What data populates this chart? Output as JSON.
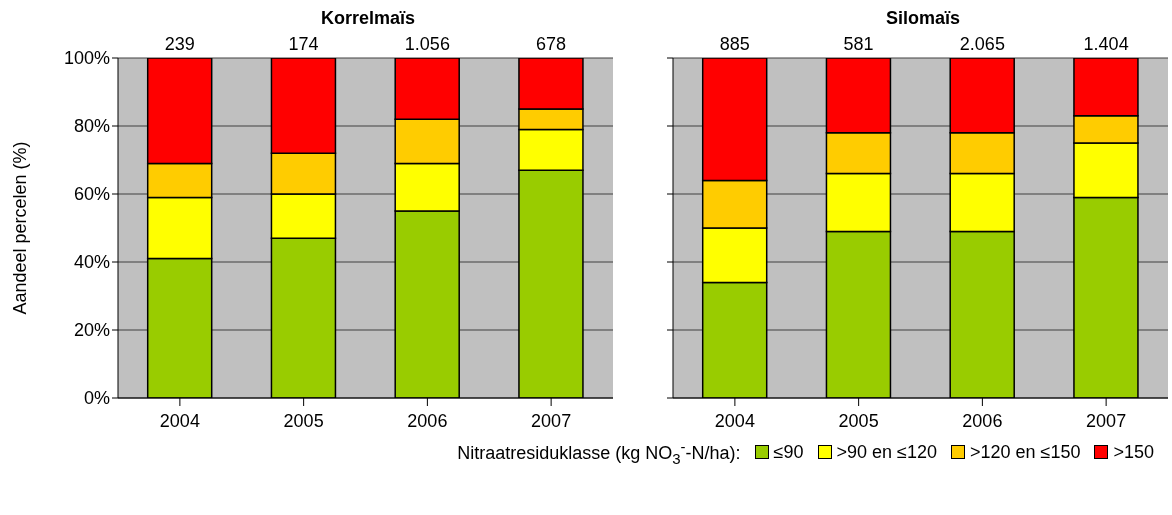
{
  "chart_data": [
    {
      "type": "bar",
      "stacked": true,
      "title": "Korrelmaïs",
      "ylabel": "Aandeel percelen (%)",
      "categories": [
        "2004",
        "2005",
        "2006",
        "2007"
      ],
      "series": [
        {
          "name": "≤90",
          "color": "#99cc00",
          "values": [
            41,
            47,
            55,
            67
          ]
        },
        {
          "name": ">90 en ≤120",
          "color": "#ffff00",
          "values": [
            18,
            13,
            14,
            12
          ]
        },
        {
          "name": ">120 en ≤150",
          "color": "#ffcc00",
          "values": [
            10,
            12,
            13,
            6
          ]
        },
        {
          "name": ">150",
          "color": "#ff0000",
          "values": [
            31,
            28,
            18,
            15
          ]
        }
      ],
      "ylim": [
        0,
        100
      ],
      "yticks": [
        {
          "value": 0,
          "label": "0%"
        },
        {
          "value": 20,
          "label": "20%"
        },
        {
          "value": 40,
          "label": "40%"
        },
        {
          "value": 60,
          "label": "60%"
        },
        {
          "value": 80,
          "label": "80%"
        },
        {
          "value": 100,
          "label": "100%"
        }
      ],
      "grid": "y",
      "legend": "bottom",
      "legend_title": "Nitraatresiduklasse (kg NO$_{3}$$^{-}$-N/ha):",
      "annotations": [
        "239",
        "174",
        "1.056",
        "678"
      ]
    },
    {
      "type": "bar",
      "stacked": true,
      "title": "Silomaïs",
      "categories": [
        "2004",
        "2005",
        "2006",
        "2007"
      ],
      "series": [
        {
          "color": "#99cc00",
          "values": [
            34,
            49,
            49,
            59
          ]
        },
        {
          "color": "#ffff00",
          "values": [
            16,
            17,
            17,
            16
          ]
        },
        {
          "color": "#ffcc00",
          "values": [
            14,
            12,
            12,
            8
          ]
        },
        {
          "color": "#ff0000",
          "values": [
            36,
            22,
            22,
            17
          ]
        }
      ],
      "ylim": [
        0,
        100
      ],
      "yticks": [
        {
          "value": 0,
          "label": null
        },
        {
          "value": 20,
          "label": null
        },
        {
          "value": 40,
          "label": null
        },
        {
          "value": 60,
          "label": null
        },
        {
          "value": 80,
          "label": null
        },
        {
          "value": 100,
          "label": null
        }
      ],
      "grid": "y",
      "tick_labels": "x",
      "annotations": [
        "885",
        "581",
        "2.065",
        "1.404"
      ]
    }
  ]
}
